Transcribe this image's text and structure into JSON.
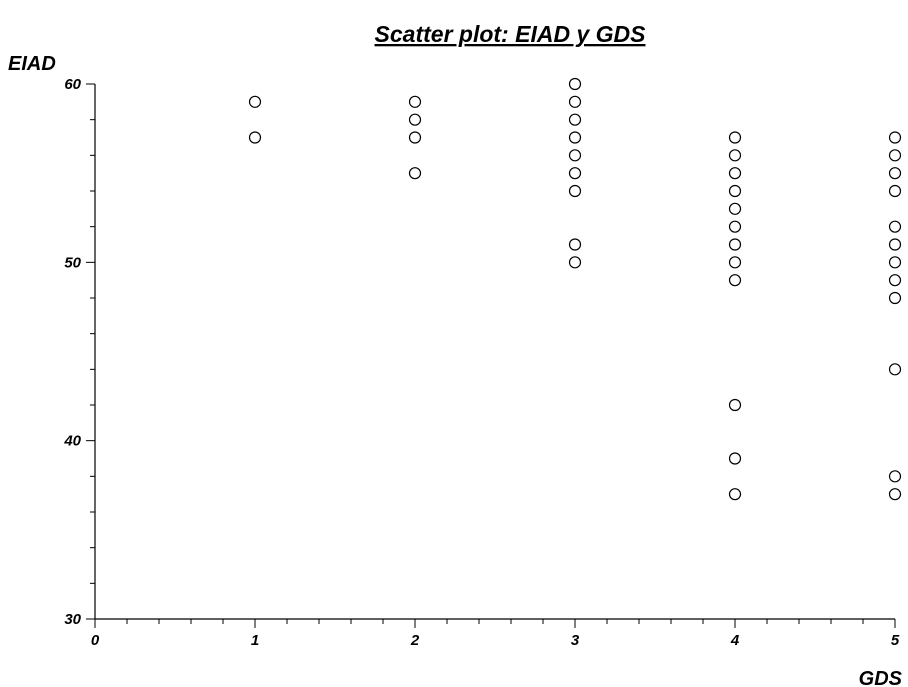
{
  "chart_data": {
    "type": "scatter",
    "title": "Scatter plot: EIAD y GDS",
    "xlabel": "GDS",
    "ylabel": "EIAD",
    "xlim": [
      0,
      5
    ],
    "ylim": [
      30,
      60
    ],
    "x_ticks": [
      "0",
      "1",
      "2",
      "3",
      "4",
      "5"
    ],
    "y_ticks": [
      "30",
      "40",
      "50",
      "60"
    ],
    "grid": false,
    "series": [
      {
        "points": [
          [
            1,
            59
          ],
          [
            1,
            57
          ],
          [
            2,
            59
          ],
          [
            2,
            58
          ],
          [
            2,
            57
          ],
          [
            2,
            55
          ],
          [
            3,
            60
          ],
          [
            3,
            59
          ],
          [
            3,
            58
          ],
          [
            3,
            57
          ],
          [
            3,
            56
          ],
          [
            3,
            55
          ],
          [
            3,
            54
          ],
          [
            3,
            51
          ],
          [
            3,
            50
          ],
          [
            4,
            57
          ],
          [
            4,
            56
          ],
          [
            4,
            55
          ],
          [
            4,
            54
          ],
          [
            4,
            53
          ],
          [
            4,
            52
          ],
          [
            4,
            51
          ],
          [
            4,
            50
          ],
          [
            4,
            49
          ],
          [
            4,
            42
          ],
          [
            4,
            39
          ],
          [
            4,
            37
          ],
          [
            5,
            57
          ],
          [
            5,
            56
          ],
          [
            5,
            55
          ],
          [
            5,
            54
          ],
          [
            5,
            52
          ],
          [
            5,
            51
          ],
          [
            5,
            50
          ],
          [
            5,
            49
          ],
          [
            5,
            48
          ],
          [
            5,
            44
          ],
          [
            5,
            38
          ],
          [
            5,
            37
          ]
        ]
      }
    ]
  }
}
